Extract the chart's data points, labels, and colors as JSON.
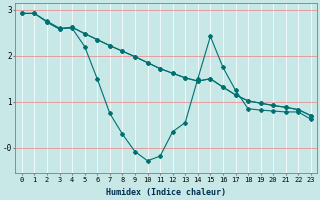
{
  "xlabel": "Humidex (Indice chaleur)",
  "bg_color": "#c8e8e8",
  "line_color": "#007070",
  "grid_color": "#ffffff",
  "red_grid_color": "#f08080",
  "xlim": [
    -0.5,
    23.5
  ],
  "ylim": [
    -0.55,
    3.15
  ],
  "yticks": [
    0,
    1,
    2,
    3
  ],
  "ytick_labels": [
    "-0",
    "1",
    "2",
    "3"
  ],
  "xticks": [
    0,
    1,
    2,
    3,
    4,
    5,
    6,
    7,
    8,
    9,
    10,
    11,
    12,
    13,
    14,
    15,
    16,
    17,
    18,
    19,
    20,
    21,
    22,
    23
  ],
  "line_zigzag_x": [
    0,
    1,
    2,
    3,
    4,
    5,
    6,
    7,
    8,
    9,
    10,
    11,
    12,
    13,
    14,
    15,
    16,
    17,
    18,
    19,
    20,
    21,
    22,
    23
  ],
  "line_zigzag_y": [
    2.92,
    2.92,
    2.75,
    2.6,
    2.6,
    2.2,
    1.5,
    0.75,
    0.3,
    -0.08,
    -0.28,
    -0.18,
    0.35,
    0.55,
    1.5,
    2.42,
    1.75,
    1.25,
    0.85,
    0.82,
    0.8,
    0.78,
    0.78,
    0.62
  ],
  "line_trend1_x": [
    0,
    1,
    2,
    3,
    4,
    5,
    6,
    7,
    8,
    9,
    10,
    11,
    12,
    13,
    14,
    15,
    16,
    17,
    18,
    19,
    20,
    21,
    22,
    23
  ],
  "line_trend1_y": [
    2.92,
    2.92,
    2.73,
    2.58,
    2.62,
    2.48,
    2.35,
    2.22,
    2.1,
    1.98,
    1.85,
    1.72,
    1.62,
    1.52,
    1.45,
    1.5,
    1.32,
    1.15,
    1.02,
    0.97,
    0.92,
    0.88,
    0.83,
    0.7
  ],
  "line_trend2_x": [
    2,
    3,
    4,
    5,
    6,
    7,
    8,
    9,
    10,
    11,
    12,
    13,
    14,
    15,
    16,
    17,
    18,
    19,
    20,
    21,
    22,
    23
  ],
  "line_trend2_y": [
    2.73,
    2.58,
    2.62,
    2.48,
    2.35,
    2.22,
    2.1,
    1.98,
    1.85,
    1.72,
    1.62,
    1.52,
    1.45,
    1.5,
    1.32,
    1.15,
    1.02,
    0.97,
    0.92,
    0.88,
    0.83,
    0.7
  ],
  "marker": "D",
  "markersize": 2.0,
  "linewidth": 0.8,
  "tick_fontsize": 5.0,
  "xlabel_fontsize": 6.0
}
